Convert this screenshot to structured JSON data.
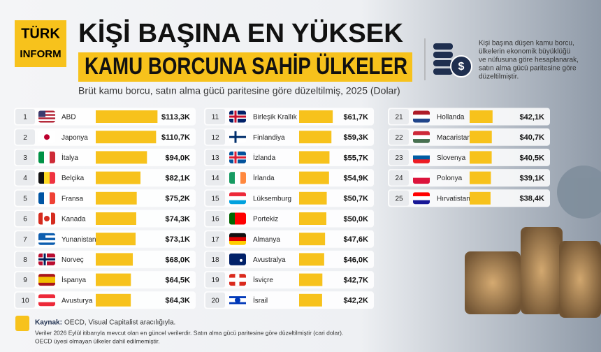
{
  "header": {
    "logo_line1": "TÜRK",
    "logo_line2": "INFORM",
    "title_line1": "KİŞİ BAŞINA EN YÜKSEK",
    "title_line2": "KAMU BORCUNA SAHİP ÜLKELER",
    "subtitle": "Brüt kamu borcu, satın alma gücü paritesine göre düzeltilmiş, 2025 (Dolar)",
    "description": [
      "Kişi başına düşen kamu borcu,",
      "ülkelerin ekonomik büyüklüğü",
      "ve nüfusuna göre hesaplanarak,",
      "satın alma gücü paritesine göre",
      "düzeltilmiştir."
    ]
  },
  "chart_data": {
    "type": "bar",
    "color": "#f7c21c",
    "ranks": [
      1,
      2,
      3,
      4,
      5,
      6,
      7,
      8,
      9,
      10,
      11,
      12,
      13,
      14,
      15,
      16,
      17,
      18,
      19,
      20,
      21,
      22,
      23,
      24,
      25
    ],
    "categories": [
      "ABD",
      "Japonya",
      "İtalya",
      "Belçika",
      "Fransa",
      "Kanada",
      "Yunanistan",
      "Norveç",
      "İspanya",
      "Avusturya",
      "Birleşik Krallık",
      "Finlandiya",
      "İzlanda",
      "İrlanda",
      "Lüksemburg",
      "Portekiz",
      "Almanya",
      "Avustralya",
      "İsviçre",
      "İsrail",
      "Hollanda",
      "Macaristan",
      "Slovenya",
      "Polonya",
      "Hırvatistan"
    ],
    "values": [
      113.3,
      110.7,
      94.0,
      82.1,
      75.2,
      74.3,
      73.1,
      68.0,
      64.5,
      64.3,
      61.7,
      59.3,
      55.7,
      54.9,
      50.7,
      50.0,
      47.6,
      46.0,
      42.7,
      42.2,
      42.1,
      40.7,
      40.5,
      39.1,
      38.4
    ],
    "value_labels": [
      "$113,3K",
      "$110,7K",
      "$94,0K",
      "$82,1K",
      "$75,2K",
      "$74,3K",
      "$73,1K",
      "$68,0K",
      "$64,5K",
      "$64,3K",
      "$61,7K",
      "$59,3K",
      "$55,7K",
      "$54,9K",
      "$50,7K",
      "$50,0K",
      "$47,6K",
      "$46,0K",
      "$42,7K",
      "$42,2K",
      "$42,1K",
      "$40,7K",
      "$40,5K",
      "$39,1K",
      "$38,4K"
    ]
  },
  "footer": {
    "source_label": "Kaynak:",
    "source": "OECD, Visual Capitalist aracılığıyla.",
    "notes": [
      "Veriler 2026 Eylül itibarıyla mevcut olan en güncel verilerdir. Satın alma gücü paritesine göre düzeltilmiştir (cari dolar).",
      "OECD üyesi olmayan ülkeler dahil edilmemiştir."
    ]
  }
}
